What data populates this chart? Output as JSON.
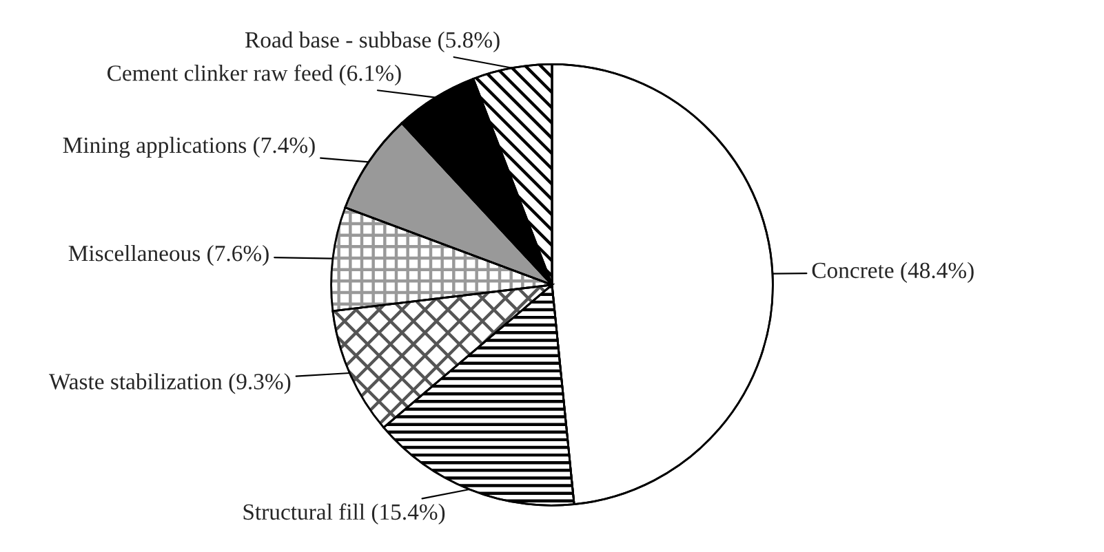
{
  "chart_data": {
    "type": "pie",
    "categories": [
      "Concrete (48.4%)",
      "Structural fill (15.4%)",
      "Waste stabilization (9.3%)",
      "Miscellaneous (7.6%)",
      "Mining applications (7.4%)",
      "Cement clinker raw feed (6.1%)",
      "Road base - subbase (5.8%)"
    ],
    "values": [
      48.4,
      15.4,
      9.3,
      7.6,
      7.4,
      6.1,
      5.8
    ],
    "colors": [
      "#ffffff",
      "#000000",
      "#555555",
      "#999999",
      "#999999",
      "#000000",
      "#000000"
    ],
    "legend": false
  }
}
